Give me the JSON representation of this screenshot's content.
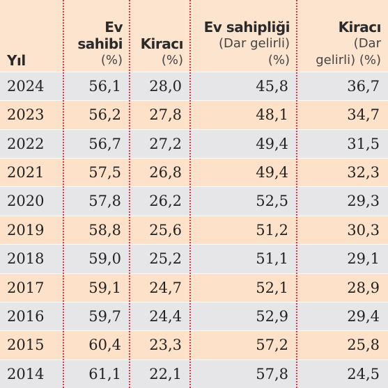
{
  "table": {
    "header": [
      {
        "bold": [
          "Yıl"
        ],
        "normal": []
      },
      {
        "bold": [
          "Ev",
          "sahibi"
        ],
        "normal": [
          "(%)"
        ]
      },
      {
        "bold": [
          "Kiracı"
        ],
        "normal": [
          "(%)"
        ]
      },
      {
        "bold": [
          "Ev sahipliği"
        ],
        "normal": [
          "(Dar gelirli)",
          "(%)"
        ]
      },
      {
        "bold": [
          "Kiracı"
        ],
        "normal": [
          "(Dar",
          "gelirli) (%)"
        ]
      }
    ],
    "rows": [
      [
        "2024",
        "56,1",
        "28,0",
        "45,8",
        "36,7"
      ],
      [
        "2023",
        "56,2",
        "27,8",
        "48,1",
        "34,7"
      ],
      [
        "2022",
        "56,7",
        "27,2",
        "49,4",
        "31,5"
      ],
      [
        "2021",
        "57,5",
        "26,8",
        "49,4",
        "32,3"
      ],
      [
        "2020",
        "57,8",
        "26,2",
        "52,5",
        "29,3"
      ],
      [
        "2019",
        "58,8",
        "25,6",
        "51,2",
        "30,3"
      ],
      [
        "2018",
        "59,0",
        "25,2",
        "51,1",
        "29,1"
      ],
      [
        "2017",
        "59,1",
        "24,7",
        "52,1",
        "28,9"
      ],
      [
        "2016",
        "59,7",
        "24,4",
        "52,9",
        "29,4"
      ],
      [
        "2015",
        "60,4",
        "23,3",
        "57,2",
        "25,8"
      ],
      [
        "2014",
        "61,1",
        "22,1",
        "57,8",
        "24,5"
      ]
    ]
  }
}
